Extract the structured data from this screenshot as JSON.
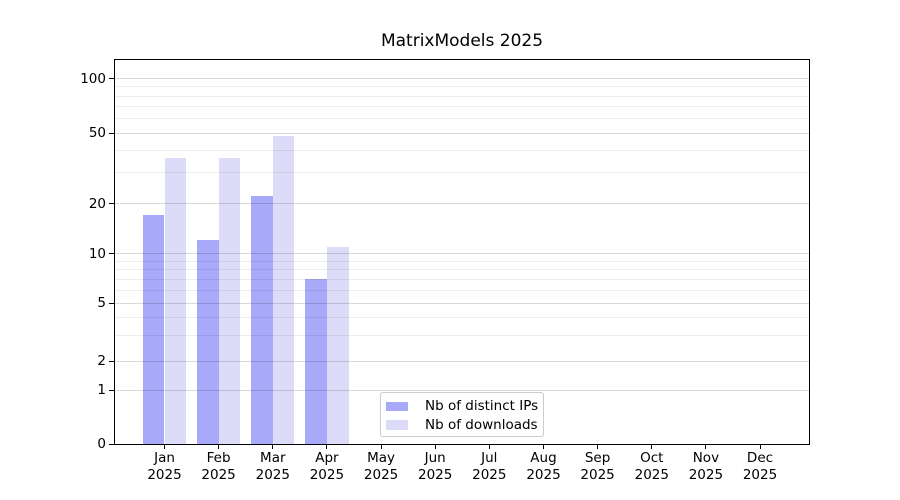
{
  "chart_data": {
    "type": "bar",
    "title": "MatrixModels 2025",
    "xlabel": "",
    "ylabel": "",
    "yscale": "symlog",
    "ylim": [
      0,
      130
    ],
    "grid": "both",
    "legend_position": "lower-center-left",
    "x_categories": [
      "Jan",
      "Feb",
      "Mar",
      "Apr",
      "May",
      "Jun",
      "Jul",
      "Aug",
      "Sep",
      "Oct",
      "Nov",
      "Dec"
    ],
    "x_year_suffix": "2025",
    "y_major_ticks": [
      0,
      1,
      2,
      5,
      10,
      20,
      50,
      100
    ],
    "y_minor_gridlines": [
      3,
      4,
      6,
      7,
      8,
      9,
      30,
      40,
      60,
      70,
      80,
      90
    ],
    "series": [
      {
        "name": "Nb of distinct IPs",
        "color": "#a9a9f9",
        "values": [
          17,
          12,
          22,
          7,
          0,
          0,
          0,
          0,
          0,
          0,
          0,
          0
        ]
      },
      {
        "name": "Nb of downloads",
        "color": "#dcdcf9",
        "values": [
          36,
          36,
          48,
          11,
          0,
          0,
          0,
          0,
          0,
          0,
          0,
          0
        ]
      }
    ]
  }
}
